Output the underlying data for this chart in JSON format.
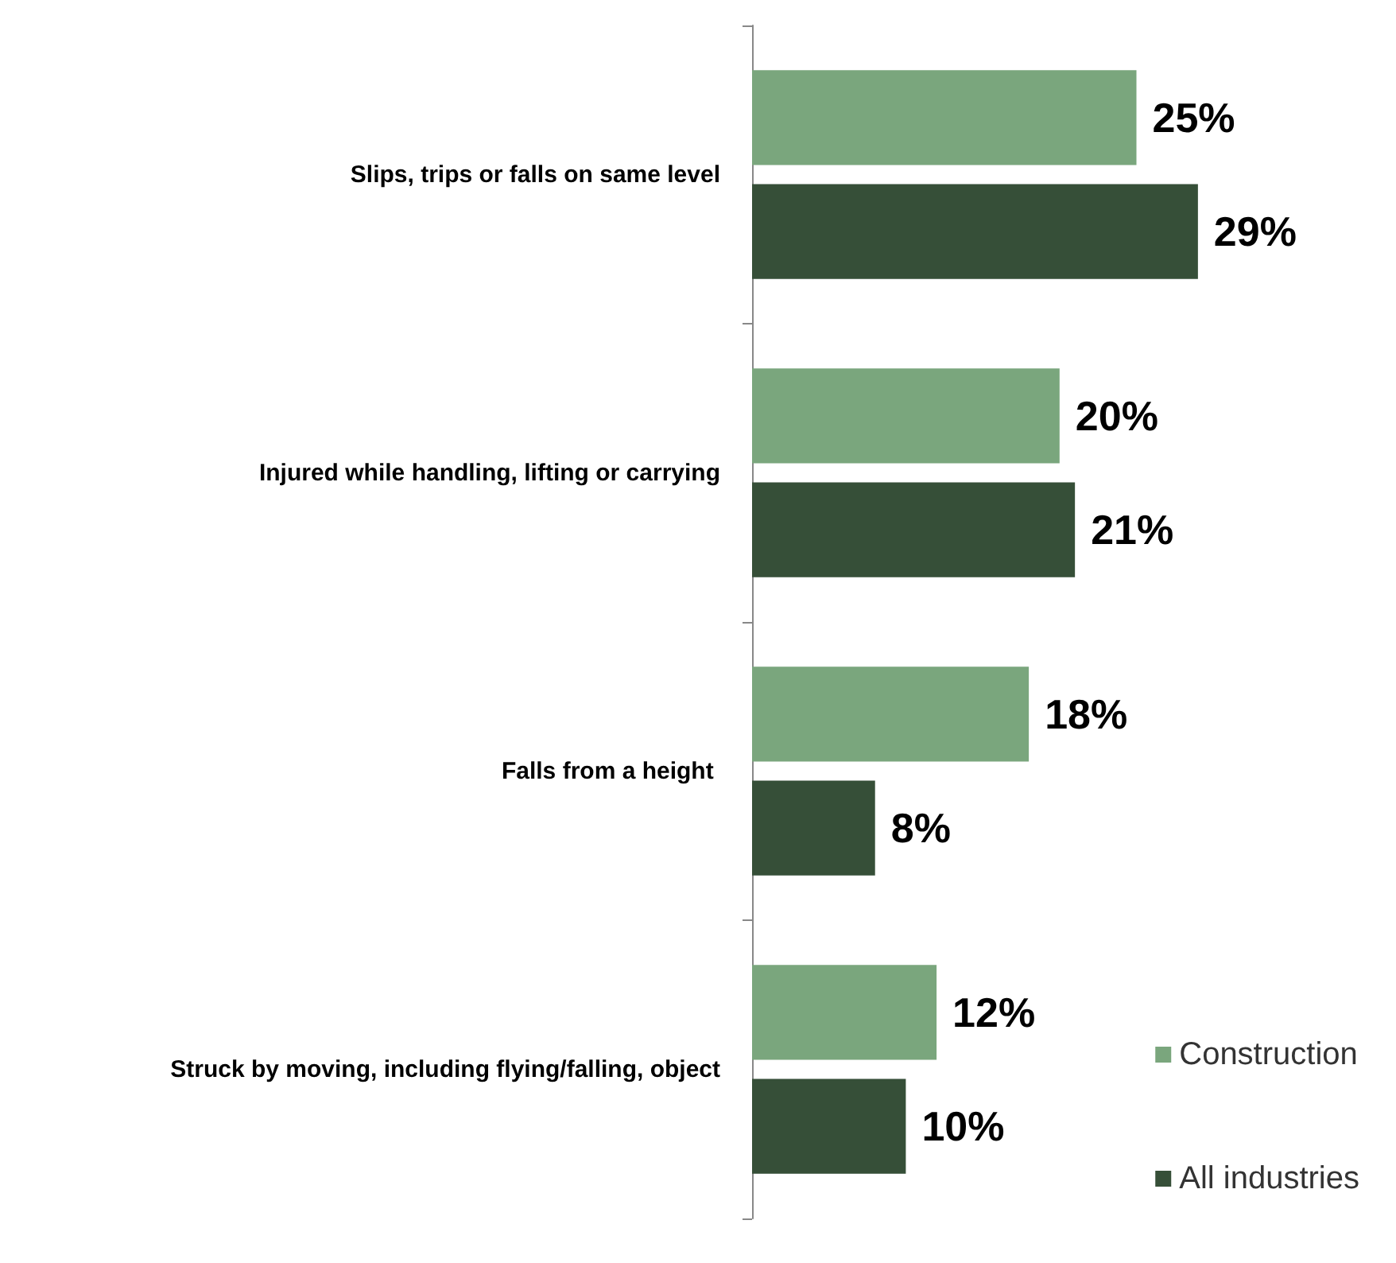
{
  "chart_data": {
    "type": "bar",
    "orientation": "horizontal",
    "categories": [
      "Slips, trips or falls on same level",
      "Injured while handling, lifting or carrying",
      "Falls from a height ",
      "Struck by moving, including flying/falling, object"
    ],
    "series": [
      {
        "name": "Construction",
        "color": "#7aa67d",
        "values": [
          25,
          20,
          18,
          12
        ],
        "value_labels": [
          "25%",
          "20%",
          "18%",
          "12%"
        ]
      },
      {
        "name": "All industries",
        "color": "#364f38",
        "values": [
          29,
          21,
          8,
          10
        ],
        "value_labels": [
          "29%",
          "21%",
          "8%",
          "10%"
        ]
      }
    ],
    "legend": "bottom right"
  }
}
